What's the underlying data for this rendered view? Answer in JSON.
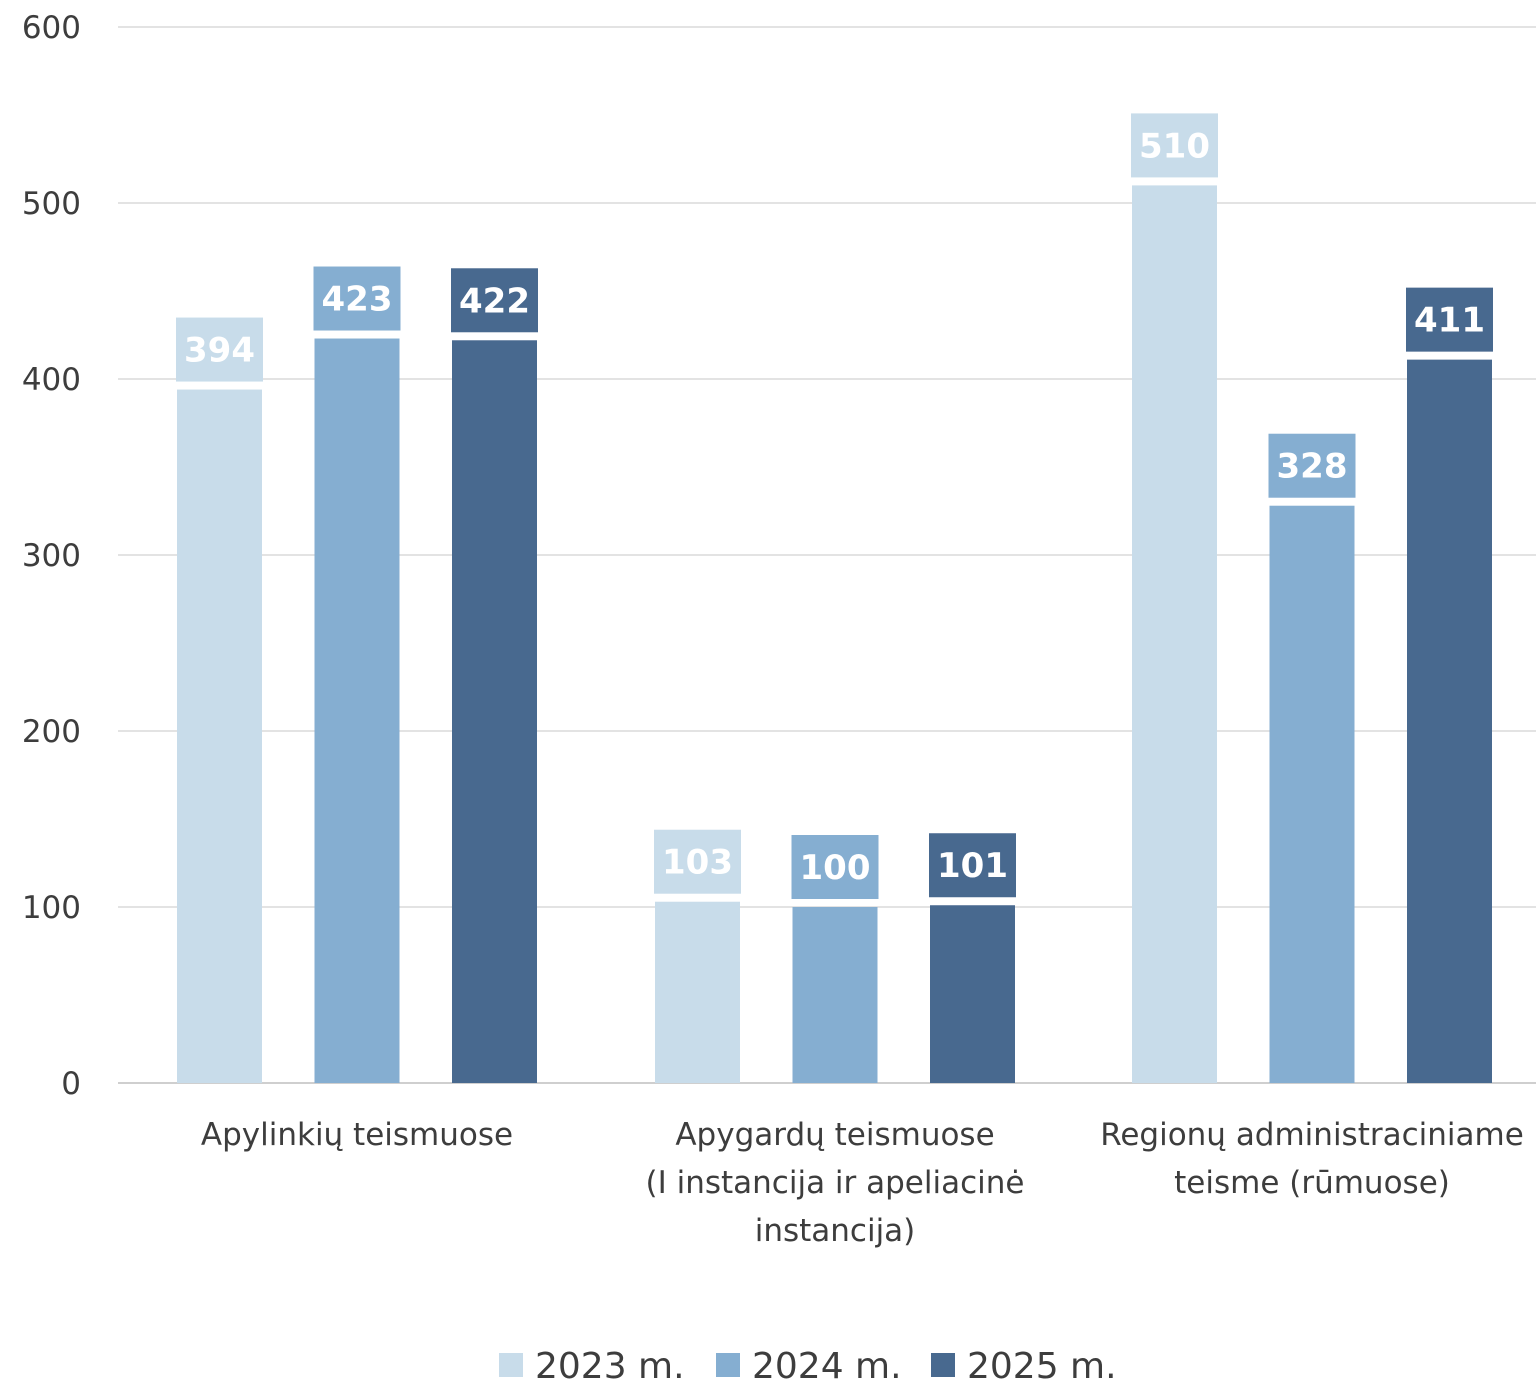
{
  "chart_data": {
    "type": "bar",
    "title": "",
    "xlabel": "",
    "ylabel": "",
    "ylim": [
      0,
      600
    ],
    "yticks": [
      0,
      100,
      200,
      300,
      400,
      500,
      600
    ],
    "grid": true,
    "legend_position": "bottom",
    "categories": [
      [
        "Apylinkių teismuose"
      ],
      [
        "Apygardų teismuose",
        "(I instancija ir apeliacinė",
        "instancija)"
      ],
      [
        "Regionų administraciniame",
        "teisme (rūmuose)"
      ]
    ],
    "series": [
      {
        "name": "2023 m.",
        "color": "#c8dcea",
        "values": [
          394,
          103,
          510
        ]
      },
      {
        "name": "2024 m.",
        "color": "#85aed1",
        "values": [
          423,
          100,
          328
        ]
      },
      {
        "name": "2025 m.",
        "color": "#48698f",
        "values": [
          422,
          101,
          411
        ]
      }
    ],
    "gridline_color": "#e3e3e3",
    "axis_color": "#cfcfcf"
  }
}
